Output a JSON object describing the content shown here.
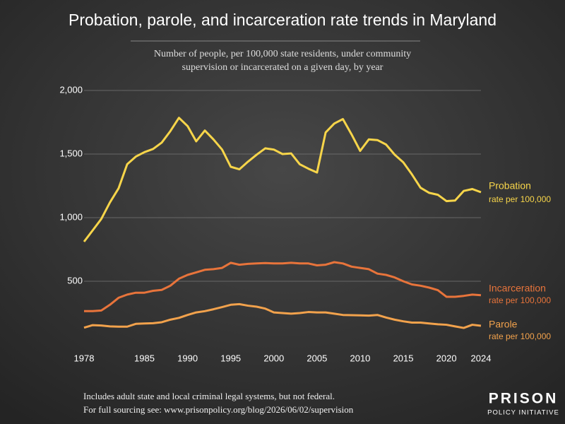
{
  "chart_data": {
    "type": "line",
    "title": "Probation, parole, and incarceration rate trends in Maryland",
    "subtitle": [
      "Number of people, per 100,000 state residents, under community",
      "supervision or incarcerated on a given day, by year"
    ],
    "x": [
      1978,
      1979,
      1980,
      1981,
      1982,
      1983,
      1984,
      1985,
      1986,
      1987,
      1988,
      1989,
      1990,
      1991,
      1992,
      1993,
      1994,
      1995,
      1996,
      1997,
      1998,
      1999,
      2000,
      2001,
      2002,
      2003,
      2004,
      2005,
      2006,
      2007,
      2008,
      2009,
      2010,
      2011,
      2012,
      2013,
      2014,
      2015,
      2016,
      2017,
      2018,
      2019,
      2020,
      2021,
      2022,
      2023,
      2024
    ],
    "xlim": [
      1978,
      2024
    ],
    "xticks": [
      1978,
      1985,
      1990,
      1995,
      2000,
      2005,
      2010,
      2015,
      2020,
      2024
    ],
    "ylim": [
      0,
      2000
    ],
    "yticks": [
      500,
      {
        "value": 1000,
        "label": "1,000"
      },
      {
        "value": 1500,
        "label": "1,500"
      },
      {
        "value": 2000,
        "label": "2,000"
      }
    ],
    "grid": true,
    "series": [
      {
        "name": "Probation",
        "note": "rate per 100,000",
        "color": "#f7d54a",
        "values": [
          811,
          900,
          990,
          1120,
          1230,
          1420,
          1480,
          1515,
          1540,
          1590,
          1680,
          1785,
          1720,
          1600,
          1685,
          1615,
          1535,
          1400,
          1380,
          1440,
          1495,
          1545,
          1535,
          1500,
          1505,
          1420,
          1385,
          1355,
          1670,
          1740,
          1775,
          1655,
          1525,
          1615,
          1610,
          1575,
          1495,
          1435,
          1340,
          1235,
          1195,
          1180,
          1130,
          1135,
          1210,
          1225,
          1200
        ]
      },
      {
        "name": "Incarceration",
        "note": "rate per 100,000",
        "color": "#e8743b",
        "values": [
          265,
          265,
          270,
          315,
          370,
          395,
          410,
          410,
          425,
          432,
          465,
          520,
          550,
          570,
          590,
          595,
          605,
          645,
          630,
          637,
          640,
          643,
          640,
          640,
          645,
          640,
          640,
          625,
          630,
          650,
          640,
          615,
          605,
          595,
          560,
          550,
          530,
          500,
          475,
          465,
          450,
          430,
          378,
          378,
          385,
          395,
          390
        ]
      },
      {
        "name": "Parole",
        "note": "rate per 100,000",
        "color": "#f2a24c",
        "values": [
          135,
          155,
          152,
          145,
          143,
          143,
          165,
          168,
          170,
          178,
          198,
          212,
          235,
          255,
          265,
          280,
          297,
          315,
          320,
          308,
          300,
          285,
          255,
          250,
          245,
          250,
          258,
          255,
          255,
          245,
          235,
          233,
          232,
          230,
          235,
          215,
          198,
          185,
          175,
          175,
          168,
          162,
          158,
          145,
          133,
          158,
          150
        ]
      }
    ],
    "footnotes": [
      "Includes adult state and local criminal legal systems, but not federal.",
      "For full sourcing see: www.prisonpolicy.org/blog/2026/06/02/supervision"
    ],
    "logo": [
      "PRISON",
      "POLICY INITIATIVE"
    ]
  }
}
